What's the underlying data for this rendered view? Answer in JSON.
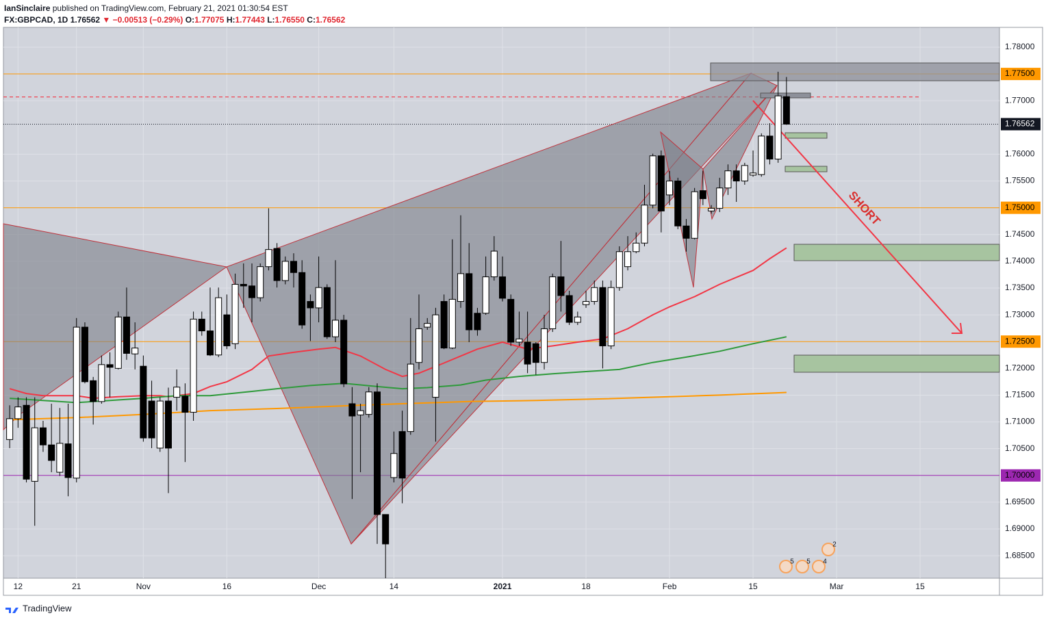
{
  "header": {
    "publisher": "IanSinclaire",
    "published": "published on TradingView.com, February 21, 2021 01:30:54 EST",
    "symbol": "FX:GBPCAD, 1D",
    "last": "1.76562",
    "change": "▼ −0.00513 (−0.29%)",
    "o_label": "O:",
    "o": "1.77075",
    "h_label": "H:",
    "h": "1.77443",
    "l_label": "L:",
    "l": "1.76550",
    "c_label": "C:",
    "c": "1.76562"
  },
  "footer": {
    "brand": "TradingView"
  },
  "chart_data": {
    "type": "candlestick",
    "up_color": "#ffffff",
    "down_color": "#000000",
    "grid": true,
    "xlim": [
      -0.75,
      118.5
    ],
    "ylim": [
      1.6808,
      1.7837
    ],
    "xticks": [
      {
        "value": 1,
        "label": "12"
      },
      {
        "value": 8,
        "label": "21"
      },
      {
        "value": 16,
        "label": "Nov"
      },
      {
        "value": 26,
        "label": "16"
      },
      {
        "value": 37,
        "label": "Dec"
      },
      {
        "value": 46,
        "label": "14"
      },
      {
        "value": 59,
        "label": "2021"
      },
      {
        "value": 69,
        "label": "18"
      },
      {
        "value": 79,
        "label": "Feb"
      },
      {
        "value": 89,
        "label": "15"
      },
      {
        "value": 99,
        "label": "Mar"
      },
      {
        "value": 109,
        "label": "15"
      }
    ],
    "yticks": [
      {
        "value": 1.78,
        "label": "1.78000"
      },
      {
        "value": 1.77,
        "label": "1.77000"
      },
      {
        "value": 1.76,
        "label": "1.76000"
      },
      {
        "value": 1.755,
        "label": "1.75500"
      },
      {
        "value": 1.745,
        "label": "1.74500"
      },
      {
        "value": 1.74,
        "label": "1.74000"
      },
      {
        "value": 1.735,
        "label": "1.73500"
      },
      {
        "value": 1.73,
        "label": "1.73000"
      },
      {
        "value": 1.72,
        "label": "1.72000"
      },
      {
        "value": 1.715,
        "label": "1.71500"
      },
      {
        "value": 1.71,
        "label": "1.71000"
      },
      {
        "value": 1.705,
        "label": "1.70500"
      },
      {
        "value": 1.695,
        "label": "1.69500"
      },
      {
        "value": 1.69,
        "label": "1.69000"
      },
      {
        "value": 1.685,
        "label": "1.68500"
      }
    ],
    "open": [
      1.7067,
      1.7106,
      1.7131,
      1.6989,
      1.7089,
      1.7057,
      1.7006,
      1.7059,
      1.6995,
      1.7277,
      1.7177,
      1.7138,
      1.7207,
      1.72,
      1.7296,
      1.7227,
      1.7204,
      1.7139,
      1.7051,
      1.7139,
      1.7146,
      1.7148,
      1.7118,
      1.7292,
      1.727,
      1.7225,
      1.73,
      1.7246,
      1.7357,
      1.7354,
      1.7332,
      1.739,
      1.7424,
      1.7364,
      1.74,
      1.7379,
      1.7325,
      1.7313,
      1.7351,
      1.7259,
      1.729,
      1.7134,
      1.7113,
      1.7114,
      1.7156,
      1.6927,
      1.6996,
      1.7082,
      1.7082,
      1.7211,
      1.7277,
      1.7146,
      1.7325,
      1.7238,
      1.7325,
      1.7377,
      1.7303,
      1.7303,
      1.7371,
      1.7371,
      1.7329,
      1.7249,
      1.7249,
      1.7246,
      1.7211,
      1.7274,
      1.7371,
      1.7336,
      1.7286,
      1.7319,
      1.7325,
      1.7351,
      1.7242,
      1.7351,
      1.739,
      1.7418,
      1.7434,
      1.7505,
      1.7597,
      1.7524,
      1.755,
      1.7466,
      1.7443,
      1.7532,
      1.7494,
      1.7499,
      1.7537,
      1.7569,
      1.755,
      1.7561,
      1.7562,
      1.7634,
      1.7591,
      1.77075
    ],
    "high": [
      1.7131,
      1.7146,
      1.7146,
      1.7146,
      1.7102,
      1.7134,
      1.7126,
      1.7134,
      1.7294,
      1.7286,
      1.7184,
      1.7224,
      1.723,
      1.7306,
      1.7351,
      1.7286,
      1.7224,
      1.7177,
      1.7146,
      1.7164,
      1.7198,
      1.7172,
      1.7306,
      1.7306,
      1.7351,
      1.7351,
      1.7338,
      1.7377,
      1.7396,
      1.7396,
      1.7396,
      1.7499,
      1.7434,
      1.7409,
      1.7415,
      1.7402,
      1.7338,
      1.7409,
      1.7357,
      1.7402,
      1.73,
      1.7165,
      1.7134,
      1.7165,
      1.7172,
      1.6927,
      1.7082,
      1.7121,
      1.7294,
      1.7338,
      1.7294,
      1.7313,
      1.7338,
      1.7441,
      1.7486,
      1.7434,
      1.7313,
      1.7409,
      1.7447,
      1.7409,
      1.7338,
      1.7306,
      1.7306,
      1.7249,
      1.73,
      1.7377,
      1.7438,
      1.7345,
      1.7306,
      1.7345,
      1.7364,
      1.7364,
      1.7364,
      1.7428,
      1.7447,
      1.7454,
      1.7543,
      1.7601,
      1.7607,
      1.7569,
      1.7556,
      1.7479,
      1.7537,
      1.7569,
      1.7505,
      1.7556,
      1.7581,
      1.7581,
      1.7584,
      1.7607,
      1.7639,
      1.7658,
      1.7754,
      1.77443
    ],
    "low": [
      1.7051,
      1.7089,
      1.6987,
      1.6906,
      1.7044,
      1.7006,
      1.6999,
      1.6961,
      1.6987,
      1.7172,
      1.7095,
      1.7134,
      1.7146,
      1.7198,
      1.7216,
      1.7198,
      1.7063,
      1.7051,
      1.7044,
      1.6967,
      1.7121,
      1.7025,
      1.7102,
      1.7261,
      1.7223,
      1.7221,
      1.7236,
      1.7236,
      1.7313,
      1.7286,
      1.7325,
      1.7383,
      1.7351,
      1.7357,
      1.7351,
      1.7274,
      1.7251,
      1.7286,
      1.7255,
      1.7249,
      1.7165,
      1.6956,
      1.7006,
      1.7108,
      1.6872,
      1.6808,
      1.6987,
      1.6948,
      1.7076,
      1.7198,
      1.7272,
      1.7063,
      1.7236,
      1.7236,
      1.7313,
      1.7249,
      1.7261,
      1.73,
      1.7364,
      1.7325,
      1.7242,
      1.7242,
      1.7191,
      1.7188,
      1.7198,
      1.7268,
      1.7306,
      1.7281,
      1.7281,
      1.7313,
      1.7319,
      1.72,
      1.7236,
      1.7345,
      1.7383,
      1.7415,
      1.7428,
      1.7499,
      1.7454,
      1.7505,
      1.746,
      1.7418,
      1.7441,
      1.7505,
      1.7489,
      1.7492,
      1.7524,
      1.7511,
      1.7543,
      1.7558,
      1.7558,
      1.7581,
      1.7584,
      1.7655
    ],
    "close": [
      1.7106,
      1.7128,
      1.6993,
      1.7089,
      1.7057,
      1.7028,
      1.706,
      1.6996,
      1.7277,
      1.7175,
      1.7138,
      1.7207,
      1.7202,
      1.7296,
      1.7228,
      1.7238,
      1.707,
      1.707,
      1.7139,
      1.7051,
      1.7165,
      1.7118,
      1.7292,
      1.727,
      1.7225,
      1.7332,
      1.7242,
      1.7357,
      1.7354,
      1.7332,
      1.739,
      1.7422,
      1.7364,
      1.74,
      1.7379,
      1.7281,
      1.7313,
      1.7351,
      1.7259,
      1.729,
      1.7171,
      1.7111,
      1.7121,
      1.7156,
      1.6927,
      1.6872,
      1.7041,
      1.6995,
      1.7208,
      1.7274,
      1.7284,
      1.73,
      1.7238,
      1.7329,
      1.7377,
      1.7272,
      1.7272,
      1.7371,
      1.7419,
      1.7331,
      1.7249,
      1.7255,
      1.7208,
      1.7211,
      1.7274,
      1.7371,
      1.7336,
      1.7286,
      1.7296,
      1.7325,
      1.7351,
      1.7242,
      1.7351,
      1.7418,
      1.7418,
      1.7434,
      1.7505,
      1.7597,
      1.7494,
      1.755,
      1.7466,
      1.7443,
      1.753,
      1.7517,
      1.7499,
      1.7537,
      1.7569,
      1.755,
      1.7579,
      1.7565,
      1.7634,
      1.7591,
      1.7709,
      1.76562
    ],
    "series": [
      {
        "color": "#f23645",
        "x": [
          0,
          2,
          4,
          8,
          10,
          13,
          16,
          18,
          19,
          22,
          24,
          26,
          29,
          31,
          34,
          37,
          39,
          42,
          45,
          47,
          49,
          52,
          54,
          56,
          59,
          62,
          65,
          68,
          71,
          74,
          77,
          79,
          82,
          85,
          87,
          89,
          91,
          93
        ],
        "values": [
          1.7162,
          1.7153,
          1.7149,
          1.7149,
          1.7144,
          1.7147,
          1.7149,
          1.7149,
          1.7147,
          1.7153,
          1.7166,
          1.7175,
          1.7198,
          1.7223,
          1.723,
          1.7236,
          1.7239,
          1.7223,
          1.7198,
          1.7185,
          1.7191,
          1.721,
          1.7223,
          1.7236,
          1.7249,
          1.7236,
          1.7242,
          1.7249,
          1.7255,
          1.7274,
          1.73,
          1.7315,
          1.7334,
          1.7357,
          1.737,
          1.7383,
          1.7405,
          1.7425
        ]
      },
      {
        "color": "#2e9a3a",
        "x": [
          0,
          4,
          8,
          12,
          16,
          20,
          24,
          29,
          32,
          36,
          40,
          44,
          47,
          50,
          54,
          57,
          61,
          65,
          69,
          73,
          77,
          81,
          85,
          89,
          93
        ],
        "values": [
          1.7144,
          1.714,
          1.7136,
          1.714,
          1.7144,
          1.7149,
          1.7149,
          1.7157,
          1.7162,
          1.7168,
          1.7172,
          1.7166,
          1.7162,
          1.7164,
          1.7169,
          1.7178,
          1.7185,
          1.719,
          1.7194,
          1.7198,
          1.7211,
          1.7221,
          1.7232,
          1.7246,
          1.7259
        ]
      },
      {
        "color": "#ff9800",
        "x": [
          0,
          8,
          16,
          24,
          32,
          40,
          47,
          55,
          63,
          71,
          79,
          85,
          93
        ],
        "values": [
          1.7104,
          1.7108,
          1.7114,
          1.7121,
          1.7125,
          1.713,
          1.7134,
          1.7138,
          1.714,
          1.7143,
          1.7147,
          1.715,
          1.7155
        ]
      }
    ],
    "levels": [
      {
        "value": 1.775,
        "label": "1.77500",
        "color": "#ff9800",
        "label_color": "#000000",
        "style": "solid"
      },
      {
        "value": 1.7707,
        "color": "#f23645",
        "style": "dashed"
      },
      {
        "value": 1.76562,
        "label": "1.76562",
        "color": "#131722",
        "label_color": "#ffffff",
        "style": "dotted"
      },
      {
        "value": 1.75,
        "label": "1.75000",
        "color": "#ff9800",
        "label_color": "#000000",
        "style": "solid"
      },
      {
        "value": 1.725,
        "label": "1.72500",
        "color": "#ff9800",
        "label_color": "#000000",
        "style": "solid"
      },
      {
        "value": 1.7,
        "label": "1.70000",
        "color": "#9c27b0",
        "label_color": "#000000",
        "style": "solid"
      }
    ],
    "annotation": "SHORT",
    "events": [
      5,
      5,
      4,
      2
    ]
  }
}
